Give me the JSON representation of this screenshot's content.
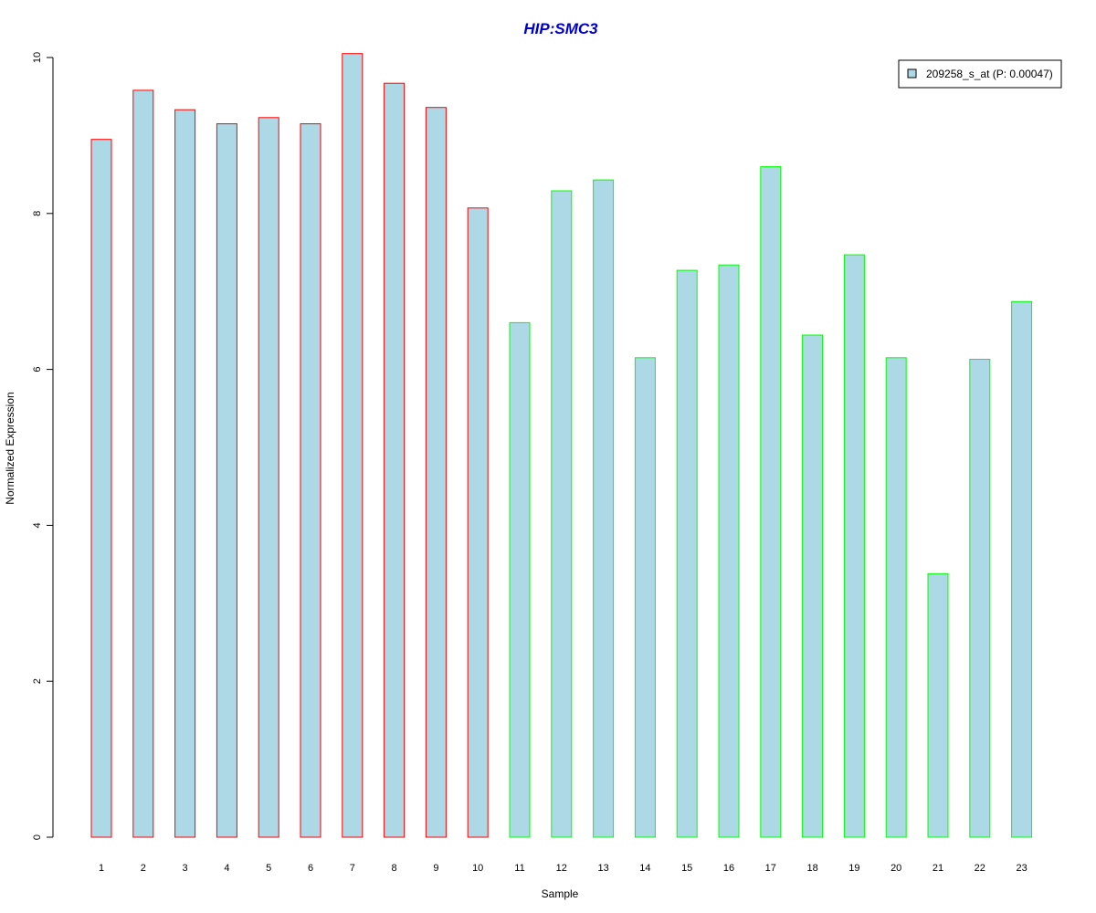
{
  "chart_data": {
    "type": "bar",
    "title": "HIP:SMC3",
    "xlabel": "Sample",
    "ylabel": "Normalized Expression",
    "categories": [
      "1",
      "2",
      "3",
      "4",
      "5",
      "6",
      "7",
      "8",
      "9",
      "10",
      "11",
      "12",
      "13",
      "14",
      "15",
      "16",
      "17",
      "18",
      "19",
      "20",
      "21",
      "22",
      "23"
    ],
    "series": [
      {
        "name": "209258_s_at (P: 0.00047)",
        "values": [
          8.95,
          9.58,
          9.33,
          9.15,
          9.23,
          9.15,
          10.05,
          9.67,
          9.36,
          8.07,
          6.6,
          8.29,
          8.43,
          6.15,
          7.27,
          7.34,
          8.6,
          6.44,
          7.47,
          6.15,
          3.38,
          6.13,
          6.87
        ]
      }
    ],
    "y_ticks": [
      "0",
      "2",
      "4",
      "6",
      "8",
      "10"
    ],
    "ylim": [
      0,
      10.05
    ],
    "grid": false,
    "legend_position": "top-right",
    "bar_fill": "#add8e6",
    "bar_border_colors": [
      "#ff0000",
      "#ff0000",
      "#ff0000",
      "#ff0000",
      "#ff0000",
      "#ff0000",
      "#ff0000",
      "#ff0000",
      "#ff0000",
      "#ff0000",
      "#00ff00",
      "#00ff00",
      "#00ff00",
      "#00ff00",
      "#00ff00",
      "#00ff00",
      "#00ff00",
      "#00ff00",
      "#00ff00",
      "#00ff00",
      "#00ff00",
      "#00ff00",
      "#00ff00"
    ],
    "title_color": "#0000cc"
  }
}
